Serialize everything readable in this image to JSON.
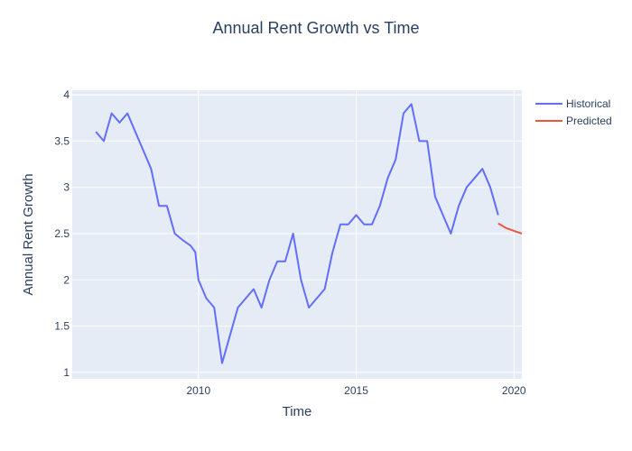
{
  "chart_data": {
    "type": "line",
    "title": "Annual Rent Growth vs Time",
    "xlabel": "Time",
    "ylabel": "Annual Rent Growth",
    "xlim": [
      2006.0,
      2020.25
    ],
    "ylim": [
      0.93,
      4.05
    ],
    "x_ticks": [
      2010,
      2015,
      2020
    ],
    "y_ticks": [
      1,
      1.5,
      2,
      2.5,
      3,
      3.5,
      4
    ],
    "x_tick_labels": [
      "2010",
      "2015",
      "2020"
    ],
    "y_tick_labels": [
      "1",
      "1.5",
      "2",
      "2.5",
      "3",
      "3.5",
      "4"
    ],
    "grid": true,
    "legend_position": "top-right",
    "series": [
      {
        "name": "Historical",
        "color": "#636efa",
        "points": [
          [
            2006.75,
            3.6
          ],
          [
            2007.0,
            3.5
          ],
          [
            2007.25,
            3.8
          ],
          [
            2007.5,
            3.7
          ],
          [
            2007.75,
            3.8
          ],
          [
            2008.0,
            3.6
          ],
          [
            2008.25,
            3.4
          ],
          [
            2008.5,
            3.2
          ],
          [
            2008.75,
            2.8
          ],
          [
            2009.0,
            2.8
          ],
          [
            2009.25,
            2.5
          ],
          [
            2009.5,
            2.43
          ],
          [
            2009.75,
            2.37
          ],
          [
            2009.9,
            2.3
          ],
          [
            2010.0,
            2.0
          ],
          [
            2010.25,
            1.8
          ],
          [
            2010.5,
            1.7
          ],
          [
            2010.75,
            1.1
          ],
          [
            2011.0,
            1.4
          ],
          [
            2011.25,
            1.7
          ],
          [
            2011.5,
            1.8
          ],
          [
            2011.75,
            1.9
          ],
          [
            2012.0,
            1.7
          ],
          [
            2012.25,
            2.0
          ],
          [
            2012.5,
            2.2
          ],
          [
            2012.75,
            2.2
          ],
          [
            2013.0,
            2.5
          ],
          [
            2013.25,
            2.0
          ],
          [
            2013.5,
            1.7
          ],
          [
            2013.75,
            1.8
          ],
          [
            2014.0,
            1.9
          ],
          [
            2014.25,
            2.3
          ],
          [
            2014.5,
            2.6
          ],
          [
            2014.75,
            2.6
          ],
          [
            2015.0,
            2.7
          ],
          [
            2015.25,
            2.6
          ],
          [
            2015.5,
            2.6
          ],
          [
            2015.75,
            2.8
          ],
          [
            2016.0,
            3.1
          ],
          [
            2016.25,
            3.3
          ],
          [
            2016.5,
            3.8
          ],
          [
            2016.75,
            3.9
          ],
          [
            2017.0,
            3.5
          ],
          [
            2017.25,
            3.5
          ],
          [
            2017.5,
            2.9
          ],
          [
            2017.75,
            2.7
          ],
          [
            2018.0,
            2.5
          ],
          [
            2018.25,
            2.8
          ],
          [
            2018.5,
            3.0
          ],
          [
            2018.75,
            3.1
          ],
          [
            2019.0,
            3.2
          ],
          [
            2019.25,
            3.0
          ],
          [
            2019.5,
            2.7
          ]
        ]
      },
      {
        "name": "Predicted",
        "color": "#ef553b",
        "points": [
          [
            2019.5,
            2.61
          ],
          [
            2019.75,
            2.56
          ],
          [
            2020.0,
            2.53
          ],
          [
            2020.25,
            2.5
          ]
        ]
      }
    ]
  }
}
